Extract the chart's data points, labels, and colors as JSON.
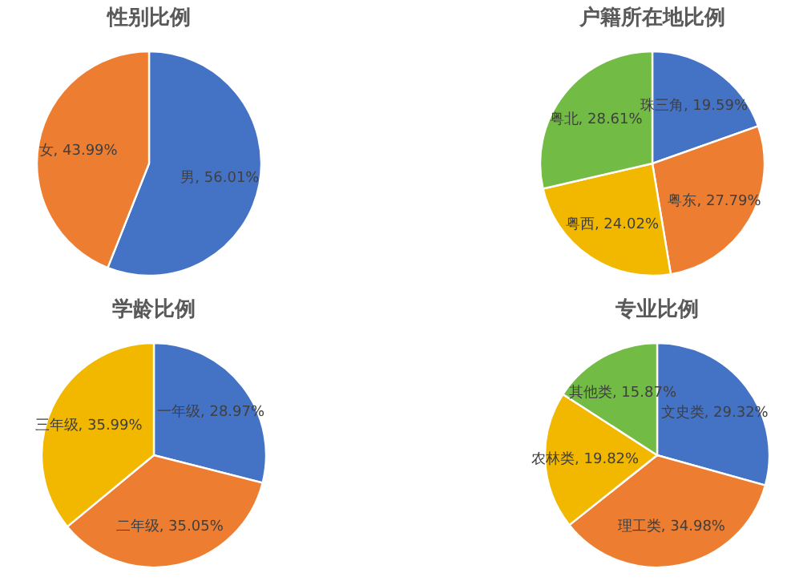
{
  "chart_data": [
    {
      "type": "pie",
      "title": "性别比例",
      "categories": [
        "男",
        "女"
      ],
      "values": [
        56.01,
        43.99
      ],
      "colors": [
        "#4472c4",
        "#ed7d31"
      ],
      "value_labels": [
        "56.01%",
        "43.99%"
      ]
    },
    {
      "type": "pie",
      "title": "户籍所在地比例",
      "categories": [
        "珠三角",
        "粤东",
        "粤西",
        "粤北"
      ],
      "values": [
        19.59,
        27.79,
        24.02,
        28.61
      ],
      "colors": [
        "#4472c4",
        "#ed7d31",
        "#f2b800",
        "#72bb44"
      ],
      "value_labels": [
        "19.59%",
        "27.79%",
        "24.02%",
        "28.61%"
      ]
    },
    {
      "type": "pie",
      "title": "学龄比例",
      "categories": [
        "一年级",
        "二年级",
        "三年级"
      ],
      "values": [
        28.97,
        35.05,
        35.99
      ],
      "colors": [
        "#4472c4",
        "#ed7d31",
        "#f2b800"
      ],
      "value_labels": [
        "28.97%",
        "35.05%",
        "35.99%"
      ]
    },
    {
      "type": "pie",
      "title": "专业比例",
      "categories": [
        "文史类",
        "理工类",
        "农林类",
        "其他类"
      ],
      "values": [
        29.32,
        34.98,
        19.82,
        15.87
      ],
      "colors": [
        "#4472c4",
        "#ed7d31",
        "#f2b800",
        "#72bb44"
      ],
      "value_labels": [
        "29.32%",
        "34.98%",
        "19.82%",
        "15.87%"
      ]
    }
  ]
}
